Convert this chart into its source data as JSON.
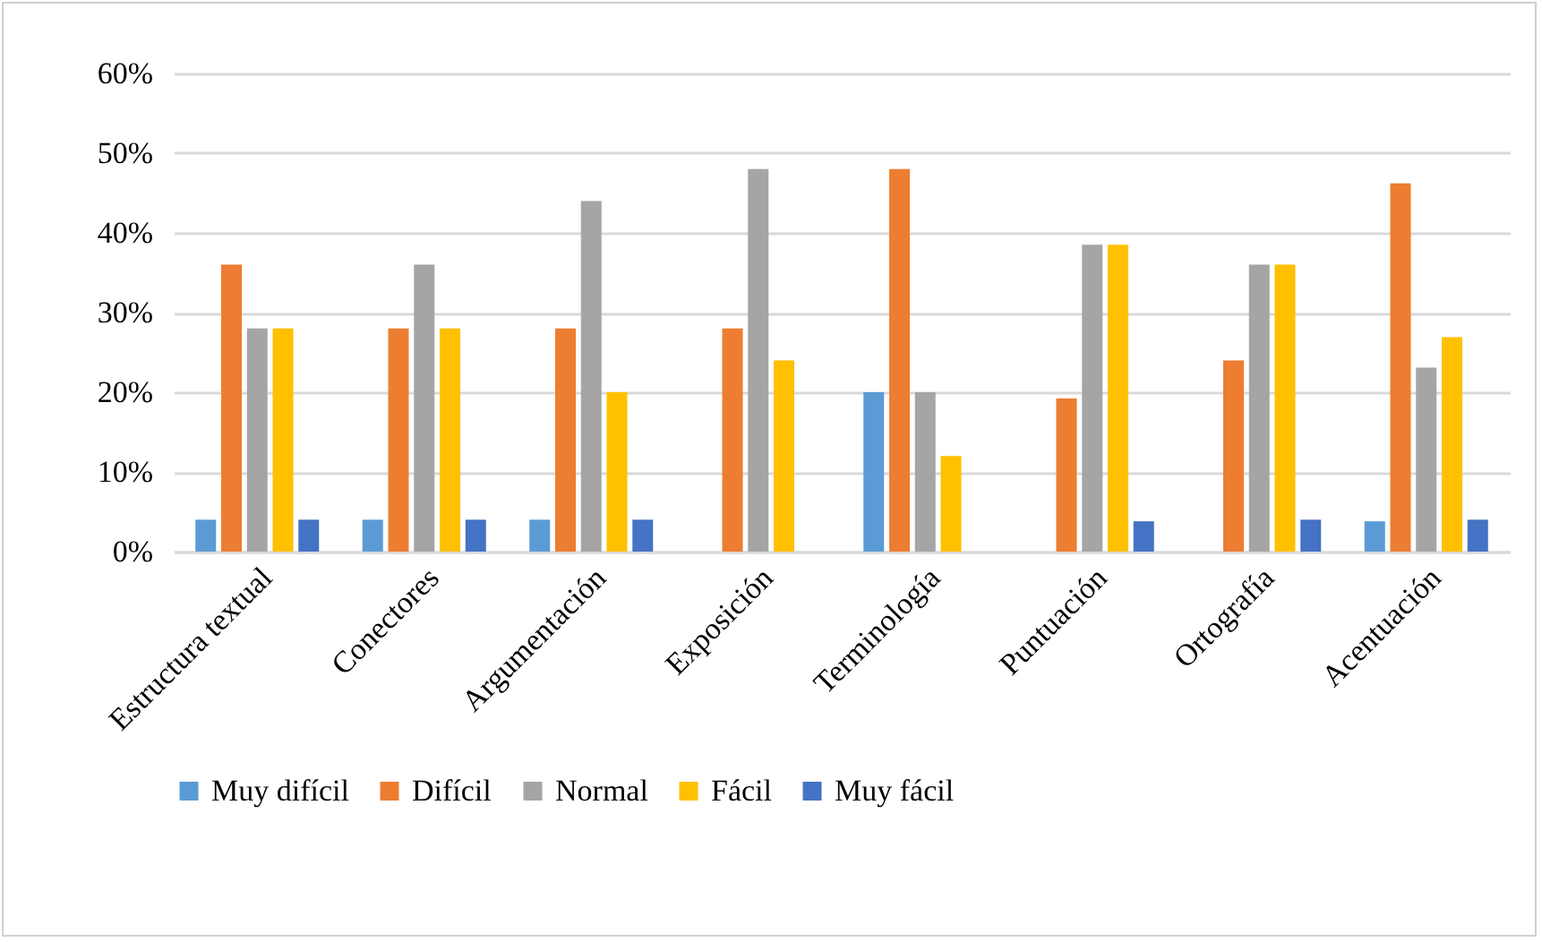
{
  "chart_data": {
    "type": "bar",
    "categories": [
      "Estructura textual",
      "Conectores",
      "Argumentación",
      "Exposición",
      "Terminología",
      "Puntuación",
      "Ortografía",
      "Acentuación"
    ],
    "series": [
      {
        "name": "Muy difícil",
        "color": "#5b9bd5",
        "values": [
          4,
          4,
          4,
          0,
          20,
          0,
          0,
          3.8
        ]
      },
      {
        "name": "Difícil",
        "color": "#ed7d31",
        "values": [
          36,
          28,
          28,
          28,
          48,
          19.2,
          24,
          46.2
        ]
      },
      {
        "name": "Normal",
        "color": "#a5a5a5",
        "values": [
          28,
          36,
          44,
          48,
          20,
          38.5,
          36,
          23.1
        ]
      },
      {
        "name": "Fácil",
        "color": "#ffc000",
        "values": [
          28,
          28,
          20,
          24,
          12,
          38.5,
          36,
          26.9
        ]
      },
      {
        "name": "Muy fácil",
        "color": "#4472c4",
        "values": [
          4,
          4,
          4,
          0,
          0,
          3.8,
          4,
          4
        ]
      }
    ],
    "ylim": [
      0,
      60
    ],
    "yticks": [
      {
        "value": 0,
        "label": "0%"
      },
      {
        "value": 10,
        "label": "10%"
      },
      {
        "value": 20,
        "label": "20%"
      },
      {
        "value": 30,
        "label": "30%"
      },
      {
        "value": 40,
        "label": "40%"
      },
      {
        "value": 50,
        "label": "50%"
      },
      {
        "value": 60,
        "label": "60%"
      }
    ],
    "grid": "y",
    "legend": "bottom"
  }
}
